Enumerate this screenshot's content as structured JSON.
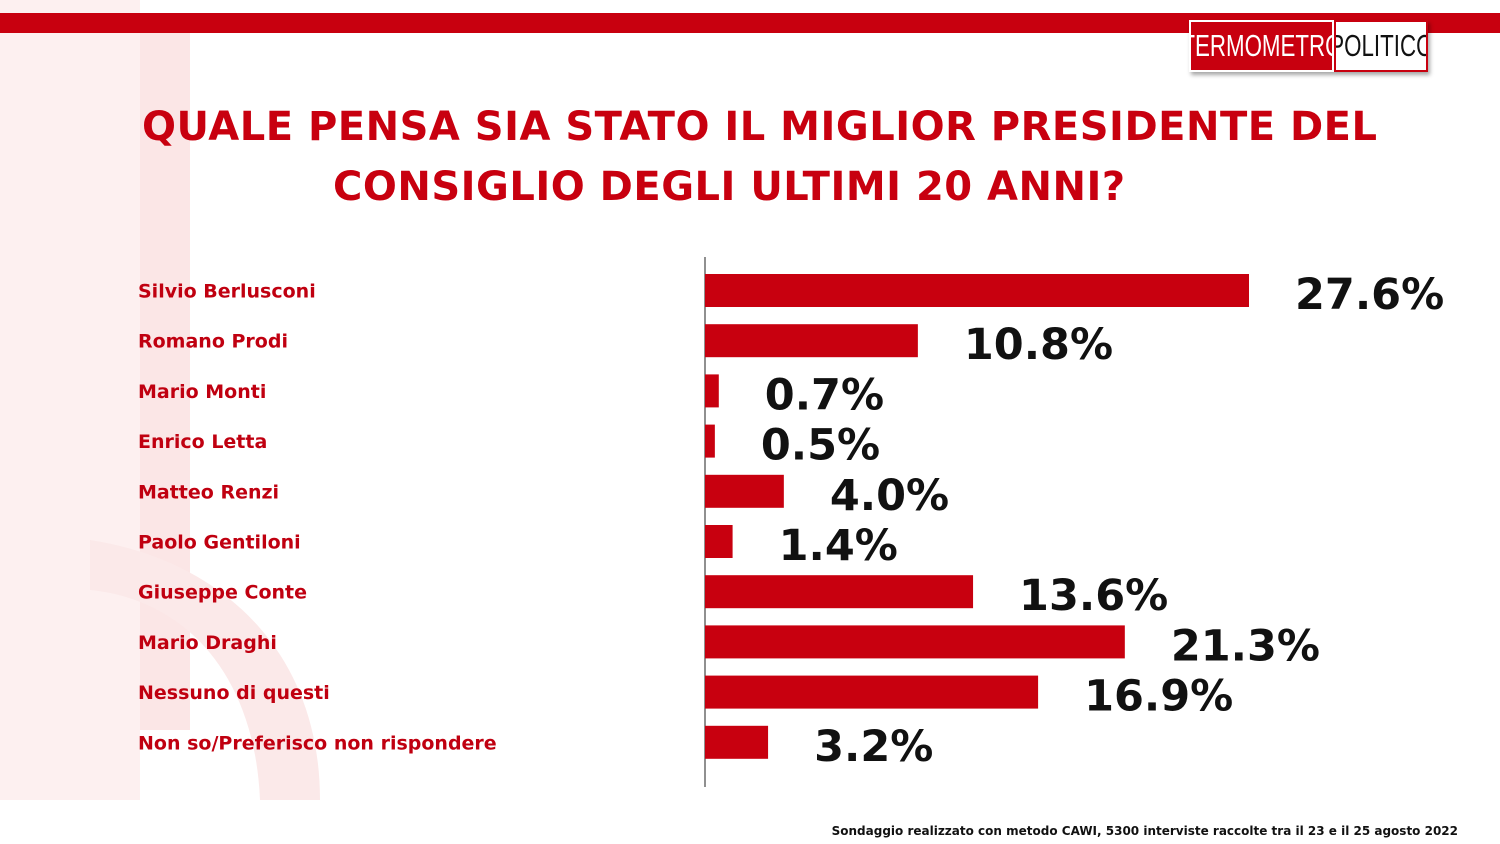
{
  "brand": {
    "logo_part1": "TERMOMETRO",
    "logo_part2": "POLITICO",
    "accent": "#c8000f"
  },
  "title_line1": "QUALE PENSA SIA STATO IL MIGLIOR PRESIDENTE DEL",
  "title_line2": "CONSIGLIO DEGLI ULTIMI 20 ANNI?",
  "footnote": "Sondaggio realizzato con metodo CAWI, 5300 interviste raccolte tra il 23 e il 25 agosto 2022",
  "chart_data": {
    "type": "bar",
    "orientation": "horizontal",
    "categories": [
      "Silvio Berlusconi",
      "Romano Prodi",
      "Mario Monti",
      "Enrico Letta",
      "Matteo Renzi",
      "Paolo Gentiloni",
      "Giuseppe Conte",
      "Mario Draghi",
      "Nessuno di questi",
      "Non so/Preferisco non rispondere"
    ],
    "values": [
      27.6,
      10.8,
      0.7,
      0.5,
      4.0,
      1.4,
      13.6,
      21.3,
      16.9,
      3.2
    ],
    "value_labels": [
      "27.6%",
      "10.8%",
      "0.7%",
      "0.5%",
      "4.0%",
      "1.4%",
      "13.6%",
      "21.3%",
      "16.9%",
      "3.2%"
    ],
    "unit": "%",
    "bar_color": "#c8000f",
    "grid": false,
    "legend": "none"
  }
}
